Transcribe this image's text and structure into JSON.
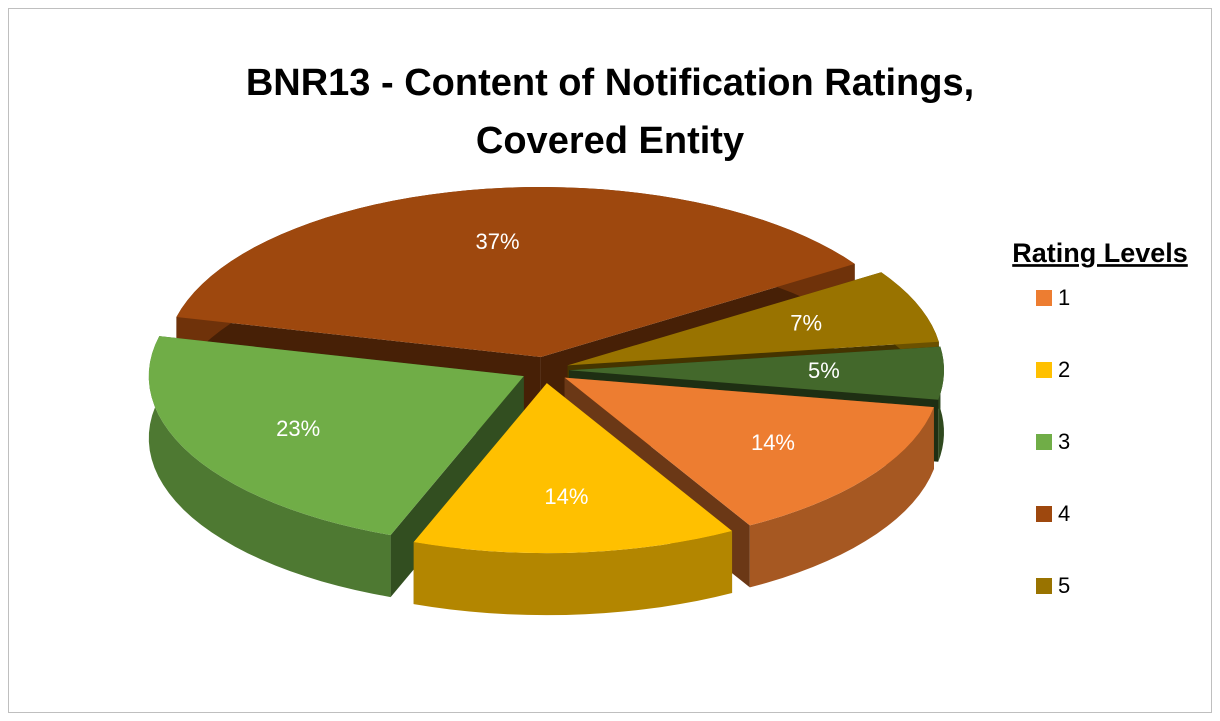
{
  "chart_data": {
    "type": "pie",
    "title": [
      "BNR13 - Content of Notification Ratings,",
      "Covered Entity"
    ],
    "legend_title": "Rating Levels",
    "legend_position": "right",
    "categories": [
      "1",
      "2",
      "3",
      "4",
      "5",
      null
    ],
    "values": [
      14,
      14,
      23,
      37,
      7,
      5
    ],
    "value_labels": [
      "14%",
      "14%",
      "23%",
      "37%",
      "7%",
      "5%"
    ],
    "colors": [
      "#ED7D31",
      "#FFC000",
      "#70AD47",
      "#9E480E",
      "#997300",
      "#43682B"
    ],
    "three_d": true,
    "exploded": true
  }
}
